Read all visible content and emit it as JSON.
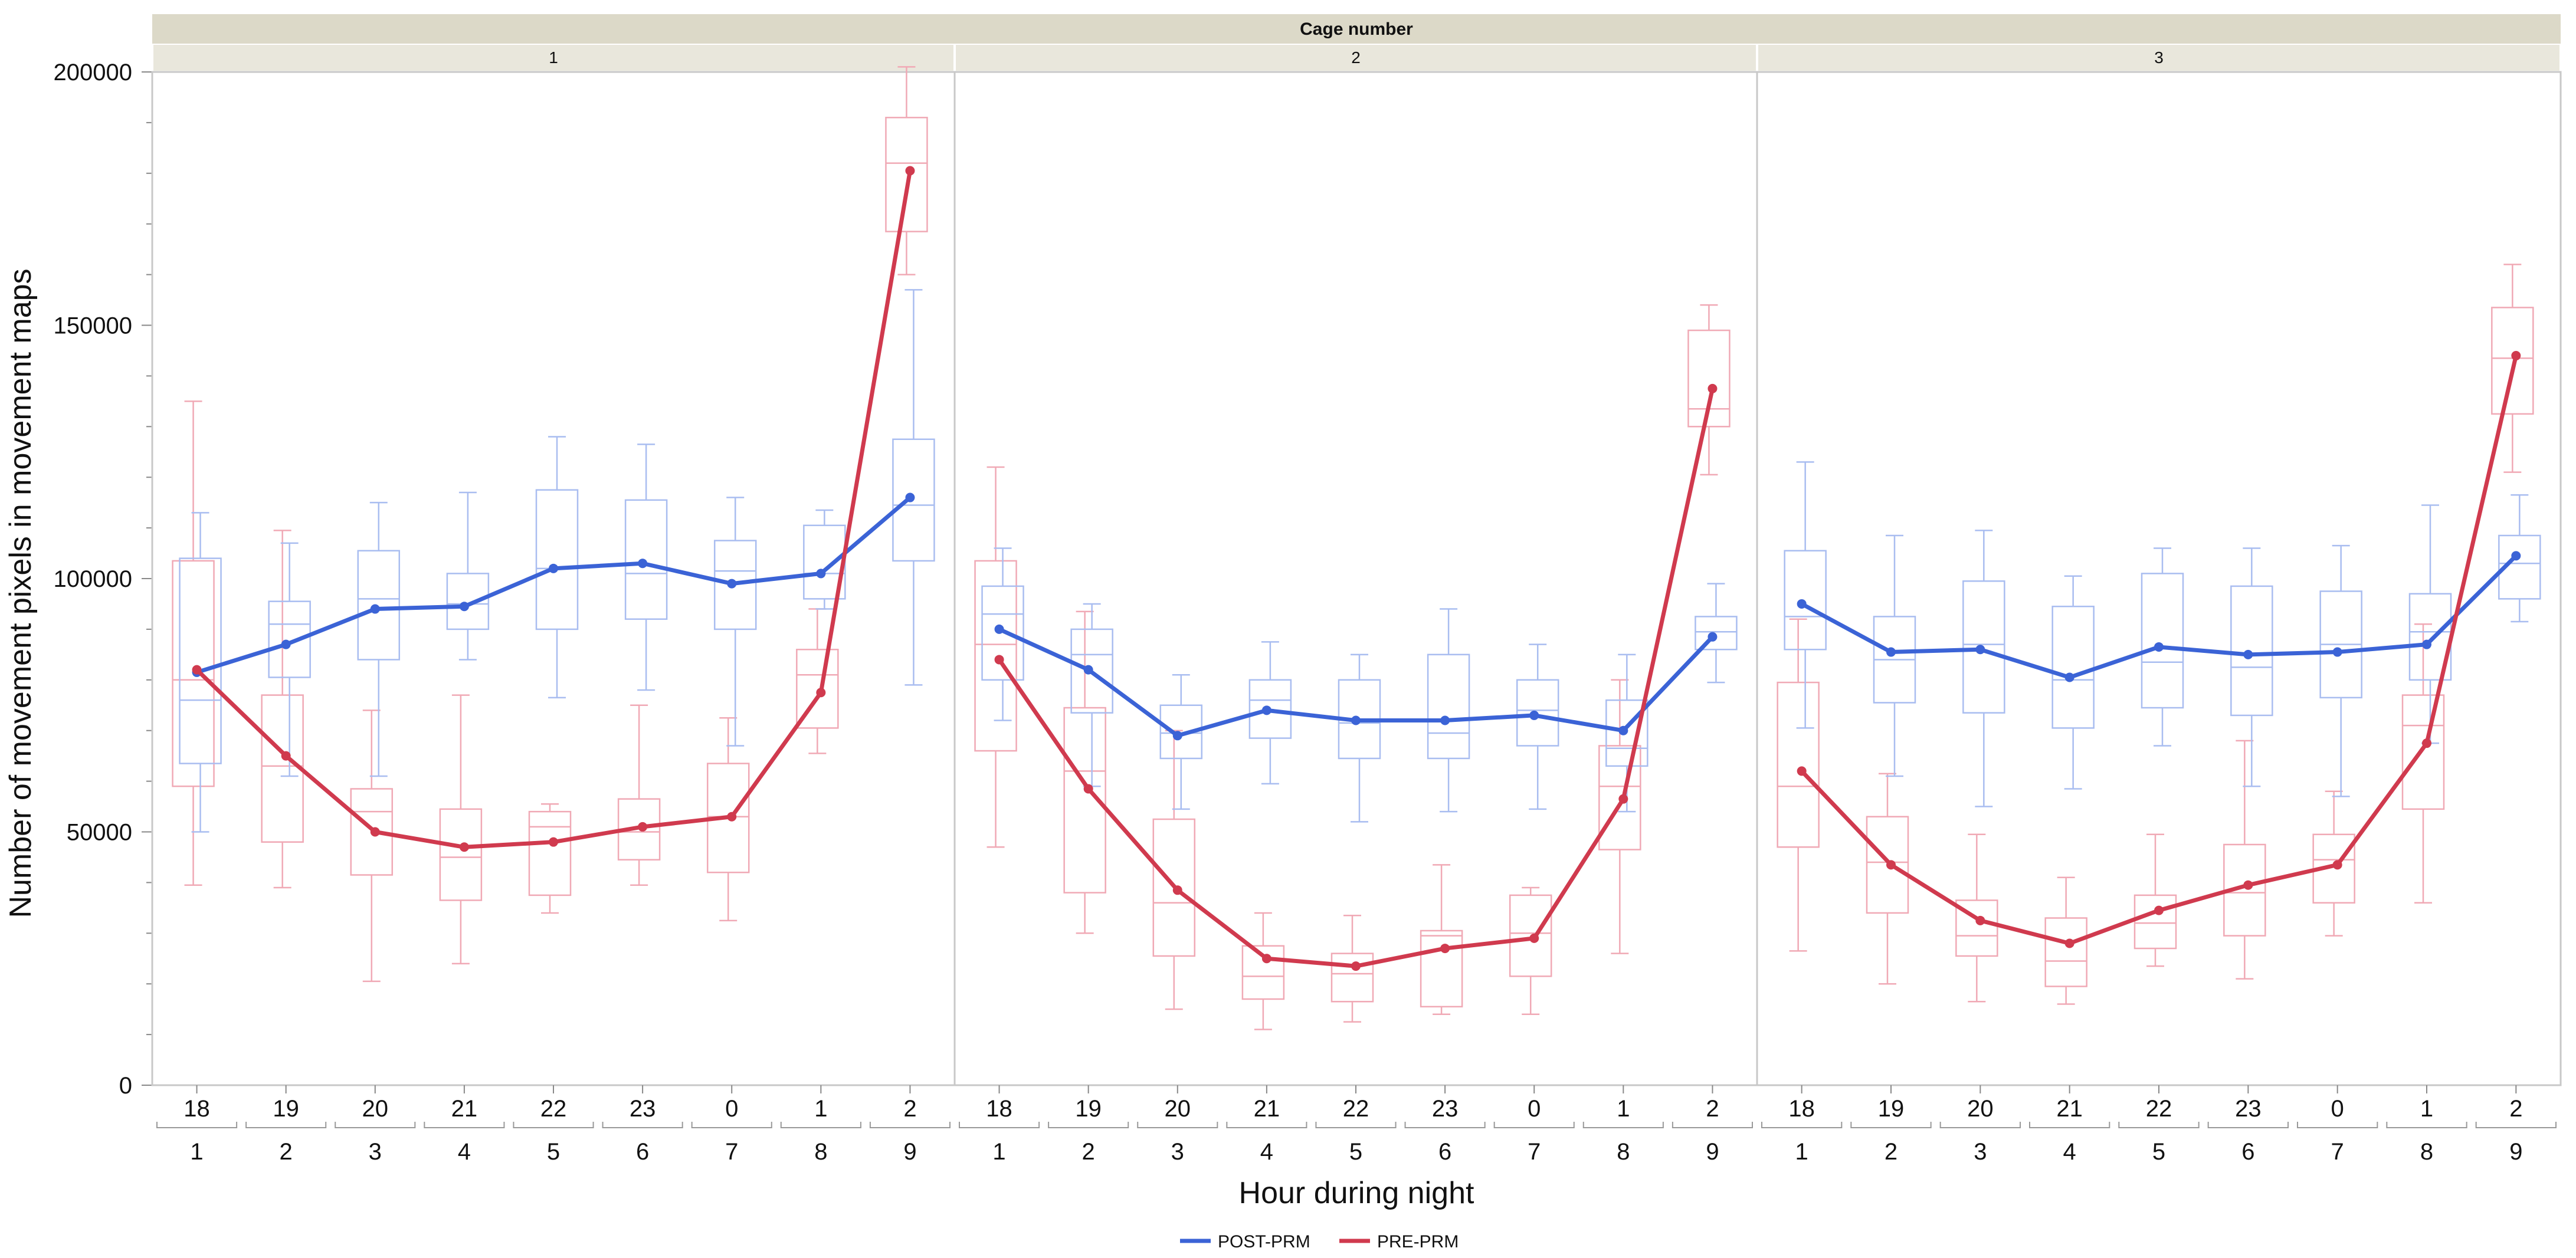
{
  "chart_data": {
    "type": "line",
    "title": "Cage number",
    "ylabel": "Number of movement pixels in movement maps",
    "xlabel": "Hour during night",
    "ylim": [
      0,
      200000
    ],
    "yticks": [
      0,
      50000,
      100000,
      150000,
      200000
    ],
    "ytick_labels": [
      "0",
      "50000",
      "100000",
      "150000",
      "200000"
    ],
    "hour_labels": [
      "18",
      "19",
      "20",
      "21",
      "22",
      "23",
      "0",
      "1",
      "2"
    ],
    "index_labels": [
      "1",
      "2",
      "3",
      "4",
      "5",
      "6",
      "7",
      "8",
      "9"
    ],
    "legend": [
      {
        "name": "POST-PRM",
        "color": "#3b63d6"
      },
      {
        "name": "PRE-PRM",
        "color": "#d03a4e"
      }
    ],
    "box_colors": {
      "POST-PRM": "#a9bdf0",
      "PRE-PRM": "#f0a9b5"
    },
    "panels": [
      {
        "label": "1",
        "series": [
          {
            "name": "POST-PRM",
            "means": [
              81500,
              87000,
              94000,
              94500,
              102000,
              103000,
              99000,
              101000,
              116000
            ]
          },
          {
            "name": "PRE-PRM",
            "means": [
              82000,
              65000,
              50000,
              47000,
              48000,
              51000,
              53000,
              77500,
              180500
            ]
          }
        ],
        "boxes": {
          "POST-PRM": [
            [
              50000,
              63500,
              76000,
              104000,
              113000
            ],
            [
              61000,
              80500,
              91000,
              95500,
              107000
            ],
            [
              61000,
              84000,
              96000,
              105500,
              115000
            ],
            [
              84000,
              90000,
              95000,
              101000,
              117000
            ],
            [
              76500,
              90000,
              102000,
              117500,
              128000
            ],
            [
              78000,
              92000,
              101000,
              115500,
              126500
            ],
            [
              67000,
              90000,
              101500,
              107500,
              116000
            ],
            [
              94000,
              96000,
              101000,
              110500,
              113500
            ],
            [
              79000,
              103500,
              114500,
              127500,
              157000
            ]
          ],
          "PRE-PRM": [
            [
              39500,
              59000,
              80000,
              103500,
              135000
            ],
            [
              39000,
              48000,
              63000,
              77000,
              109500
            ],
            [
              20500,
              41500,
              54000,
              58500,
              74000
            ],
            [
              24000,
              36500,
              45000,
              54500,
              77000
            ],
            [
              34000,
              37500,
              51000,
              54000,
              55500
            ],
            [
              39500,
              44500,
              50000,
              56500,
              75000
            ],
            [
              32500,
              42000,
              53000,
              63500,
              72500
            ],
            [
              65500,
              70500,
              81000,
              86000,
              94000
            ],
            [
              160000,
              168500,
              182000,
              191000,
              201000
            ]
          ]
        }
      },
      {
        "label": "2",
        "series": [
          {
            "name": "POST-PRM",
            "means": [
              90000,
              82000,
              69000,
              74000,
              72000,
              72000,
              73000,
              70000,
              88500
            ]
          },
          {
            "name": "PRE-PRM",
            "means": [
              84000,
              58500,
              38500,
              25000,
              23500,
              27000,
              29000,
              56500,
              137500
            ]
          }
        ],
        "boxes": {
          "POST-PRM": [
            [
              72000,
              80000,
              93000,
              98500,
              106000
            ],
            [
              59000,
              73500,
              85000,
              90000,
              95000
            ],
            [
              54500,
              64500,
              69500,
              75000,
              81000
            ],
            [
              59500,
              68500,
              76000,
              80000,
              87500
            ],
            [
              52000,
              64500,
              71500,
              80000,
              85000
            ],
            [
              54000,
              64500,
              69500,
              85000,
              94000
            ],
            [
              54500,
              67000,
              74000,
              80000,
              87000
            ],
            [
              54000,
              63000,
              66500,
              76000,
              85000
            ],
            [
              79500,
              86000,
              89500,
              92500,
              99000
            ]
          ],
          "PRE-PRM": [
            [
              47000,
              66000,
              87000,
              103500,
              122000
            ],
            [
              30000,
              38000,
              62000,
              74500,
              93500
            ],
            [
              15000,
              25500,
              36000,
              52500,
              70000
            ],
            [
              11000,
              17000,
              21500,
              27500,
              34000
            ],
            [
              12500,
              16500,
              22000,
              26000,
              33500
            ],
            [
              14000,
              15500,
              29500,
              30500,
              43500
            ],
            [
              14000,
              21500,
              30000,
              37500,
              39000
            ],
            [
              26000,
              46500,
              59000,
              67000,
              80000
            ],
            [
              120500,
              130000,
              133500,
              149000,
              154000
            ]
          ]
        }
      },
      {
        "label": "3",
        "series": [
          {
            "name": "POST-PRM",
            "means": [
              95000,
              85500,
              86000,
              80500,
              86500,
              85000,
              85500,
              87000,
              104500
            ]
          },
          {
            "name": "PRE-PRM",
            "means": [
              62000,
              43500,
              32500,
              28000,
              34500,
              39500,
              43500,
              67500,
              144000
            ]
          }
        ],
        "boxes": {
          "POST-PRM": [
            [
              70500,
              86000,
              92500,
              105500,
              123000
            ],
            [
              61000,
              75500,
              84000,
              92500,
              108500
            ],
            [
              55000,
              73500,
              87000,
              99500,
              109500
            ],
            [
              58500,
              70500,
              80000,
              94500,
              100500
            ],
            [
              67000,
              74500,
              83500,
              101000,
              106000
            ],
            [
              59000,
              73000,
              82500,
              98500,
              106000
            ],
            [
              57000,
              76500,
              87000,
              97500,
              106500
            ],
            [
              67500,
              80000,
              89500,
              97000,
              114500
            ],
            [
              91500,
              96000,
              103000,
              108500,
              116500
            ]
          ],
          "PRE-PRM": [
            [
              26500,
              47000,
              59000,
              79500,
              92000
            ],
            [
              20000,
              34000,
              44000,
              53000,
              61500
            ],
            [
              16500,
              25500,
              29500,
              36500,
              49500
            ],
            [
              16000,
              19500,
              24500,
              33000,
              41000
            ],
            [
              23500,
              27000,
              32000,
              37500,
              49500
            ],
            [
              21000,
              29500,
              38000,
              47500,
              68000
            ],
            [
              29500,
              36000,
              44500,
              49500,
              58000
            ],
            [
              36000,
              54500,
              71000,
              77000,
              91000
            ],
            [
              121000,
              132500,
              143500,
              153500,
              162000
            ]
          ]
        }
      }
    ]
  }
}
